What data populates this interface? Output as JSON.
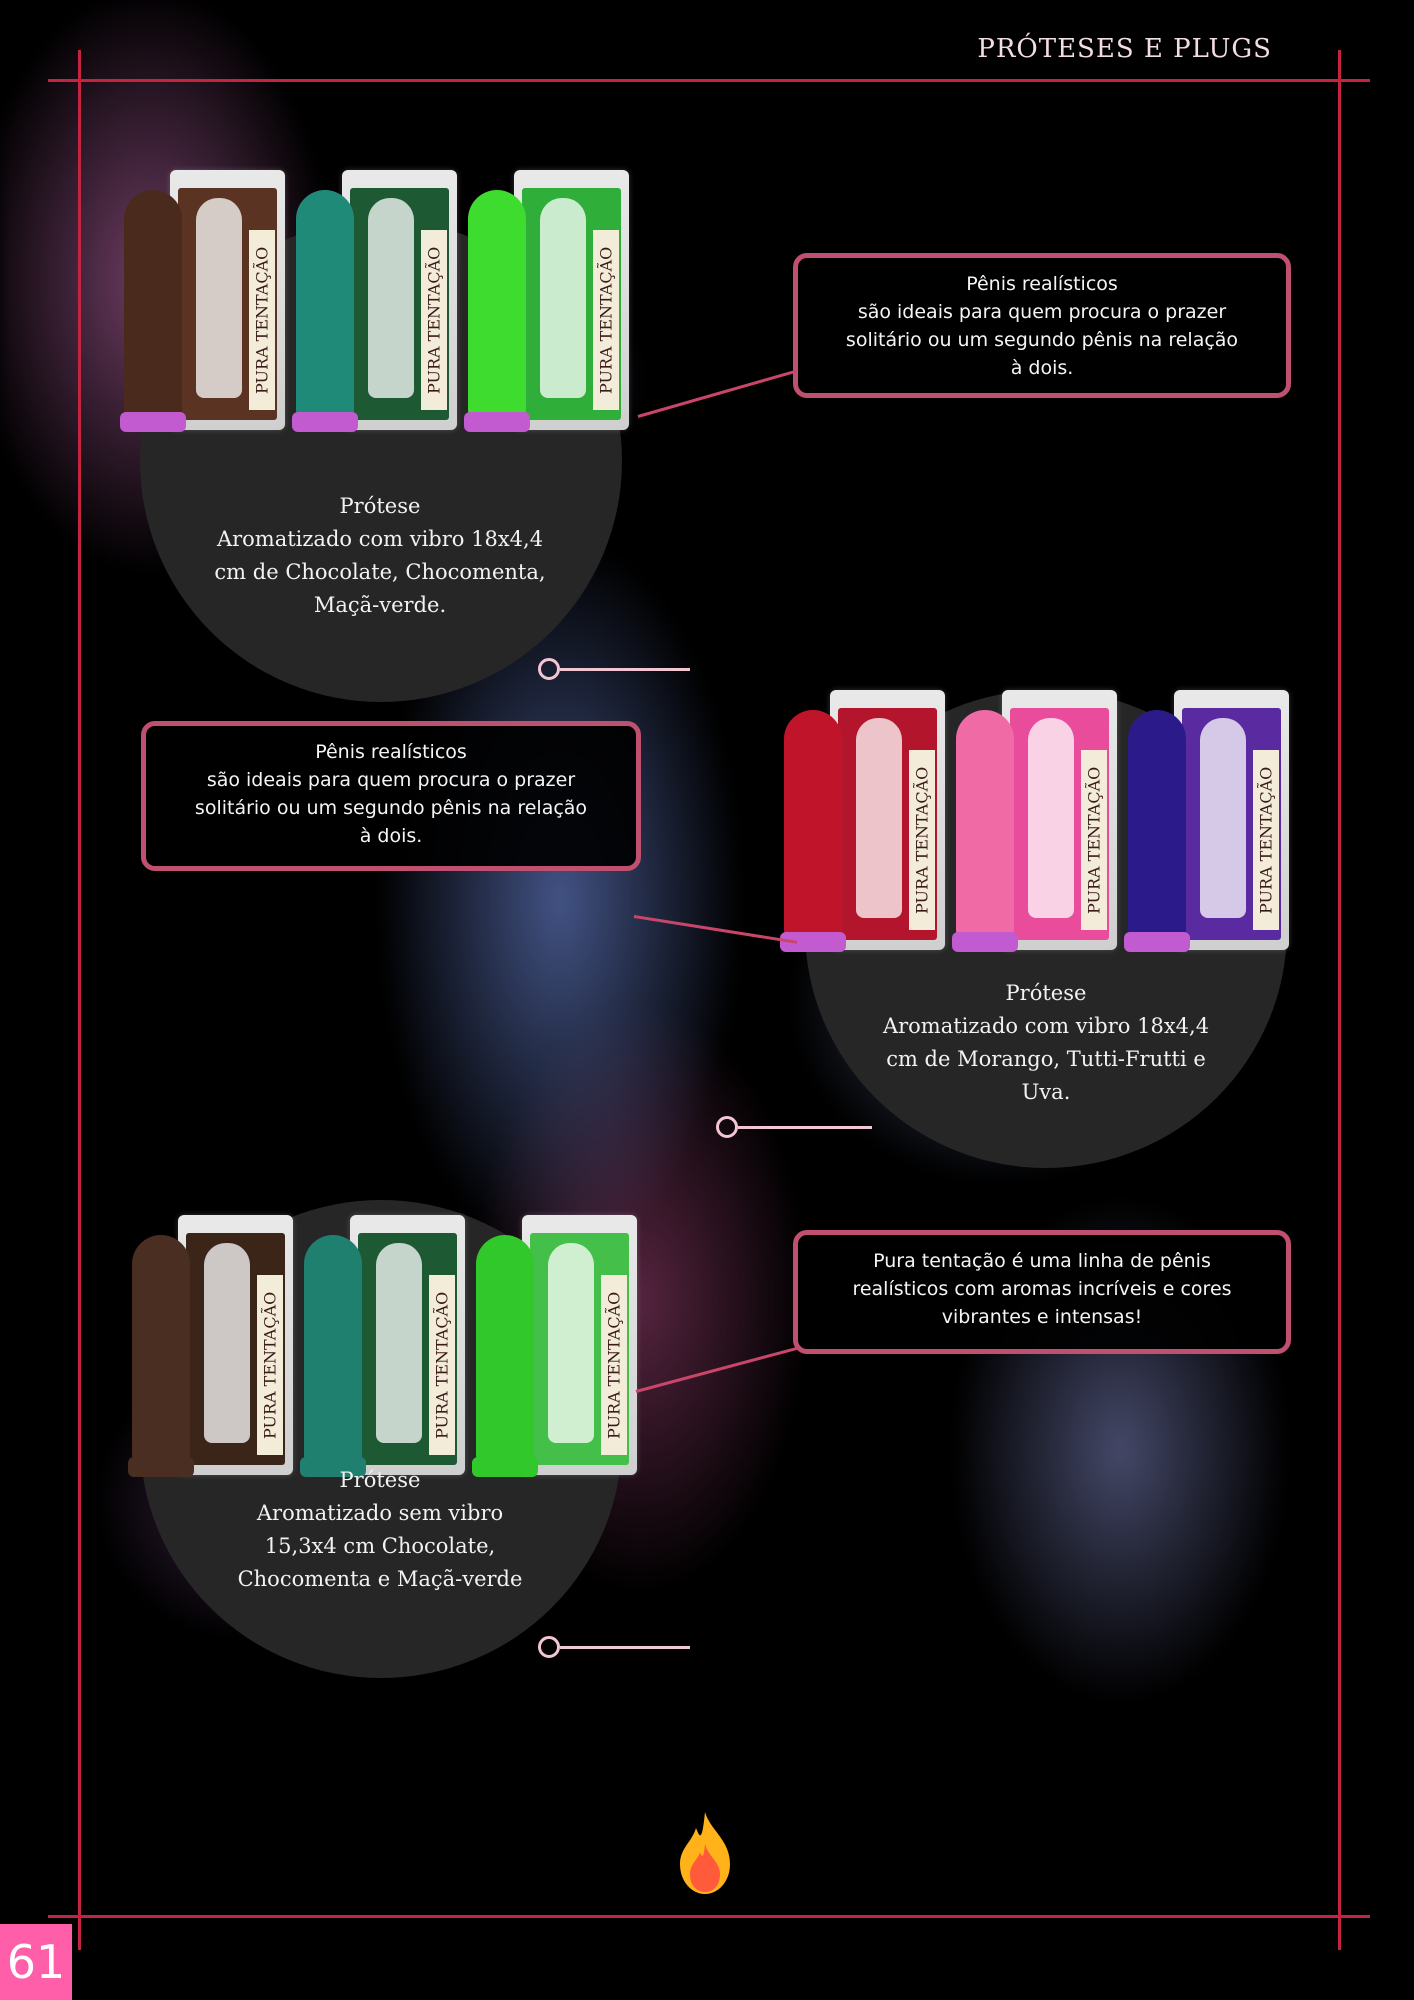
{
  "header": {
    "title": "PRÓTESES E PLUGS"
  },
  "products": [
    {
      "caption_lines": [
        "Prótese",
        "Aromatizado com vibro 18x4,4",
        "cm de Chocolate, Chocomenta,",
        "Maçã-verde."
      ],
      "variants": [
        {
          "flavor": "Chocolate",
          "color": "#4a2a1c",
          "card": "#5a3322"
        },
        {
          "flavor": "Chocomenta",
          "color": "#1f8a78",
          "card": "#1d5a34"
        },
        {
          "flavor": "Maçã-verde",
          "color": "#3ddc2e",
          "card": "#2fae3a"
        }
      ],
      "package_label": "PURA TENTAÇÃO"
    },
    {
      "caption_lines": [
        "Prótese",
        "Aromatizado com vibro 18x4,4",
        "cm de Morango, Tutti-Frutti e",
        "Uva."
      ],
      "variants": [
        {
          "flavor": "Morango",
          "color": "#c0142a",
          "card": "#b3162c"
        },
        {
          "flavor": "Tutti-Frutti",
          "color": "#f06aa6",
          "card": "#e84c9a"
        },
        {
          "flavor": "Uva",
          "color": "#2a1a8a",
          "card": "#5a2aa0"
        }
      ],
      "package_label": "PURA TENTAÇÃO"
    },
    {
      "caption_lines": [
        "Prótese",
        "Aromatizado sem vibro",
        "15,3x4 cm Chocolate,",
        "Chocomenta e Maçã-verde"
      ],
      "variants": [
        {
          "flavor": "Chocolate",
          "color": "#4a2e22",
          "card": "#3b2418"
        },
        {
          "flavor": "Chocomenta",
          "color": "#1f8070",
          "card": "#1d5a34"
        },
        {
          "flavor": "Maçã-verde",
          "color": "#30c82a",
          "card": "#44c04a"
        }
      ],
      "package_label": "PURA TENTAÇÃO"
    }
  ],
  "info_boxes": [
    {
      "lines": [
        "Pênis realísticos",
        "são ideais para quem procura o prazer",
        "solitário ou um segundo pênis na relação",
        "à dois."
      ]
    },
    {
      "lines": [
        "Pênis realísticos",
        "são ideais para quem procura o prazer",
        "solitário ou um segundo pênis na relação",
        "à dois."
      ]
    },
    {
      "lines": [
        "Pura tentação é uma linha de pênis",
        "realísticos com aromas incríveis e cores",
        "vibrantes e intensas!"
      ]
    }
  ],
  "footer": {
    "page_number": "61",
    "icon": "flame-icon"
  },
  "colors": {
    "frame": "#c4243f",
    "box_border": "#c0506f",
    "page_badge": "#ff5fa8"
  }
}
